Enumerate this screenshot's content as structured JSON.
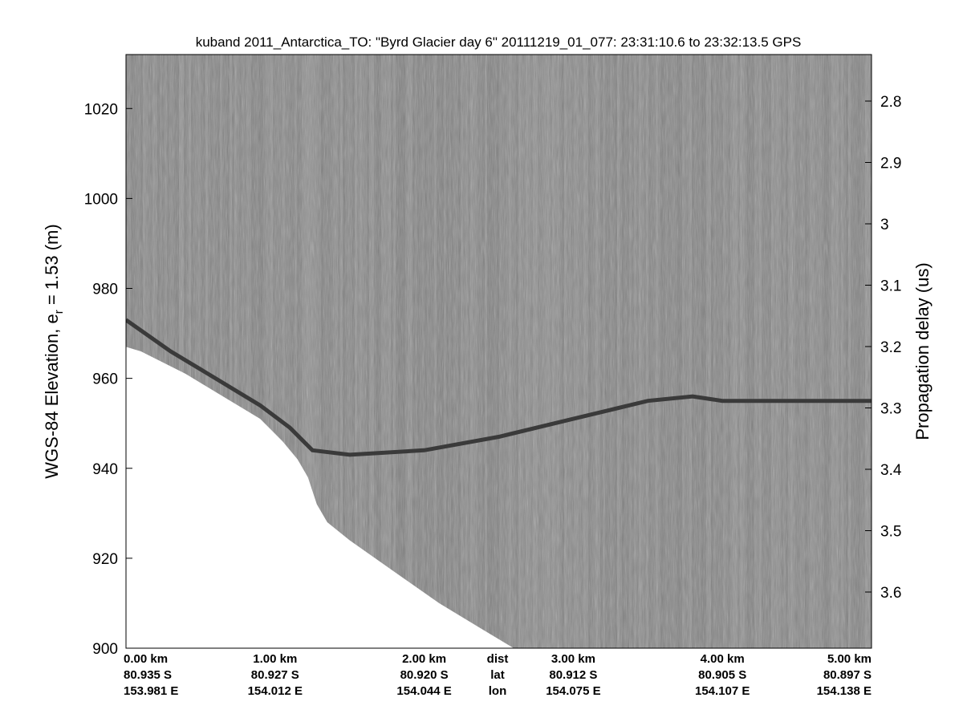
{
  "chart_data": {
    "type": "heatmap",
    "title": "kuband 2011_Antarctica_TO: \"Byrd Glacier day 6\"  20111219_01_077: 23:31:10.6 to 23:32:13.5 GPS",
    "ylabel_left": {
      "main": "WGS-84 Elevation, e",
      "sub": "r",
      "tail": " = 1.53 (m)"
    },
    "ylabel_right": "Propagation delay (us)",
    "xlim_km": [
      0,
      5
    ],
    "ylim": [
      900,
      1032
    ],
    "grid": false,
    "colormap": "gray",
    "left_ticks": [
      900,
      920,
      940,
      960,
      980,
      1000,
      1020
    ],
    "right_ticks": [
      2.8,
      2.9,
      3,
      3.1,
      3.2,
      3.3,
      3.4,
      3.5,
      3.6
    ],
    "bottom_labels": {
      "row_headers": [
        "dist",
        "lat",
        "lon"
      ],
      "columns": [
        {
          "dist": "0.00 km",
          "lat": "80.935 S",
          "lon": "153.981 E"
        },
        {
          "dist": "1.00 km",
          "lat": "80.927 S",
          "lon": "154.012 E"
        },
        {
          "dist": "2.00 km",
          "lat": "80.920 S",
          "lon": "154.044 E"
        },
        {
          "dist": "3.00 km",
          "lat": "80.912 S",
          "lon": "154.075 E"
        },
        {
          "dist": "4.00 km",
          "lat": "80.905 S",
          "lon": "154.107 E"
        },
        {
          "dist": "5.00 km",
          "lat": "80.897 S",
          "lon": "154.138 E"
        }
      ]
    },
    "surface_echo": {
      "x_km": [
        0,
        0.3,
        0.6,
        0.9,
        1.1,
        1.25,
        1.5,
        2.0,
        2.5,
        3.0,
        3.5,
        3.8,
        4.0,
        4.5,
        5.0
      ],
      "elev_m": [
        973,
        966,
        960,
        954,
        949,
        944,
        943,
        944,
        947,
        951,
        955,
        956,
        955,
        955,
        955
      ]
    },
    "no_data_boundary": {
      "x_km": [
        0,
        0.1,
        0.4,
        0.7,
        0.9,
        1.05,
        1.15,
        1.22,
        1.28,
        1.35,
        1.5,
        1.8,
        2.1,
        2.4,
        2.6
      ],
      "elev_m": [
        967,
        966,
        961,
        955,
        951,
        946,
        942,
        938,
        932,
        928,
        924,
        917,
        910,
        904,
        900
      ]
    },
    "colors": {
      "clutter": "#8c8c8c",
      "firn": "#7d7d7d",
      "surface": "#3a3a3a",
      "no_data": "#ffffff"
    }
  }
}
